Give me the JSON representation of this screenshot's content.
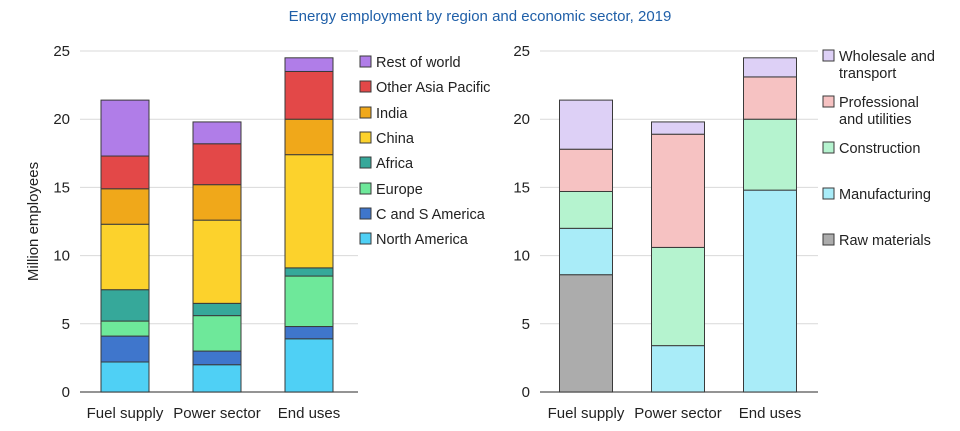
{
  "title": "Energy employment by region and economic sector, 2019",
  "chart_data": [
    {
      "type": "bar",
      "stacked": true,
      "title": "",
      "ylabel": "Million employees",
      "xlabel": "",
      "ylim": [
        0,
        25
      ],
      "yticks": [
        0,
        5,
        10,
        15,
        20,
        25
      ],
      "grid": true,
      "legend_position": "right",
      "categories": [
        "Fuel supply",
        "Power sector",
        "End uses"
      ],
      "series": [
        {
          "name": "North America",
          "color": "#4fd0f5",
          "values": [
            2.2,
            2.0,
            3.9
          ]
        },
        {
          "name": "C and S America",
          "color": "#3f76cc",
          "values": [
            1.9,
            1.0,
            0.9
          ]
        },
        {
          "name": "Europe",
          "color": "#6ee89a",
          "values": [
            1.1,
            2.6,
            3.7
          ]
        },
        {
          "name": "Africa",
          "color": "#36a89a",
          "values": [
            2.3,
            0.9,
            0.6
          ]
        },
        {
          "name": "China",
          "color": "#fcd22c",
          "values": [
            4.8,
            6.1,
            8.3
          ]
        },
        {
          "name": "India",
          "color": "#f0a81a",
          "values": [
            2.6,
            2.6,
            2.6
          ]
        },
        {
          "name": "Other Asia Pacific",
          "color": "#e34848",
          "values": [
            2.4,
            3.0,
            3.5
          ]
        },
        {
          "name": "Rest of world",
          "color": "#b07de8",
          "values": [
            4.1,
            1.6,
            1.0
          ]
        }
      ]
    },
    {
      "type": "bar",
      "stacked": true,
      "title": "",
      "ylabel": "",
      "xlabel": "",
      "ylim": [
        0,
        25
      ],
      "yticks": [
        0,
        5,
        10,
        15,
        20,
        25
      ],
      "grid": true,
      "legend_position": "right",
      "categories": [
        "Fuel supply",
        "Power sector",
        "End uses"
      ],
      "series": [
        {
          "name": "Raw materials",
          "color": "#acacac",
          "values": [
            8.6,
            0.0,
            0.0
          ]
        },
        {
          "name": "Manufacturing",
          "color": "#a9ecf8",
          "values": [
            3.4,
            3.4,
            14.8
          ]
        },
        {
          "name": "Construction",
          "color": "#b5f3cf",
          "values": [
            2.7,
            7.2,
            5.2
          ]
        },
        {
          "name": "Professional and utilities",
          "color": "#f6c2c2",
          "values": [
            3.1,
            8.3,
            3.1
          ]
        },
        {
          "name": "Wholesale and transport",
          "color": "#ddd0f6",
          "values": [
            3.6,
            0.9,
            1.4
          ]
        }
      ]
    }
  ],
  "legends": [
    {
      "items": [
        {
          "lines": [
            "Rest of world"
          ],
          "color": "#b07de8"
        },
        {
          "lines": [
            "Other Asia Pacific"
          ],
          "color": "#e34848"
        },
        {
          "lines": [
            "India"
          ],
          "color": "#f0a81a"
        },
        {
          "lines": [
            "China"
          ],
          "color": "#fcd22c"
        },
        {
          "lines": [
            "Africa"
          ],
          "color": "#36a89a"
        },
        {
          "lines": [
            "Europe"
          ],
          "color": "#6ee89a"
        },
        {
          "lines": [
            "C and S America"
          ],
          "color": "#3f76cc"
        },
        {
          "lines": [
            "North America"
          ],
          "color": "#4fd0f5"
        }
      ]
    },
    {
      "items": [
        {
          "lines": [
            "Wholesale and",
            "transport"
          ],
          "color": "#ddd0f6"
        },
        {
          "lines": [
            "Professional",
            "and utilities"
          ],
          "color": "#f6c2c2"
        },
        {
          "lines": [
            "Construction"
          ],
          "color": "#b5f3cf"
        },
        {
          "lines": [
            "Manufacturing"
          ],
          "color": "#a9ecf8"
        },
        {
          "lines": [
            "Raw materials"
          ],
          "color": "#acacac"
        }
      ]
    }
  ]
}
